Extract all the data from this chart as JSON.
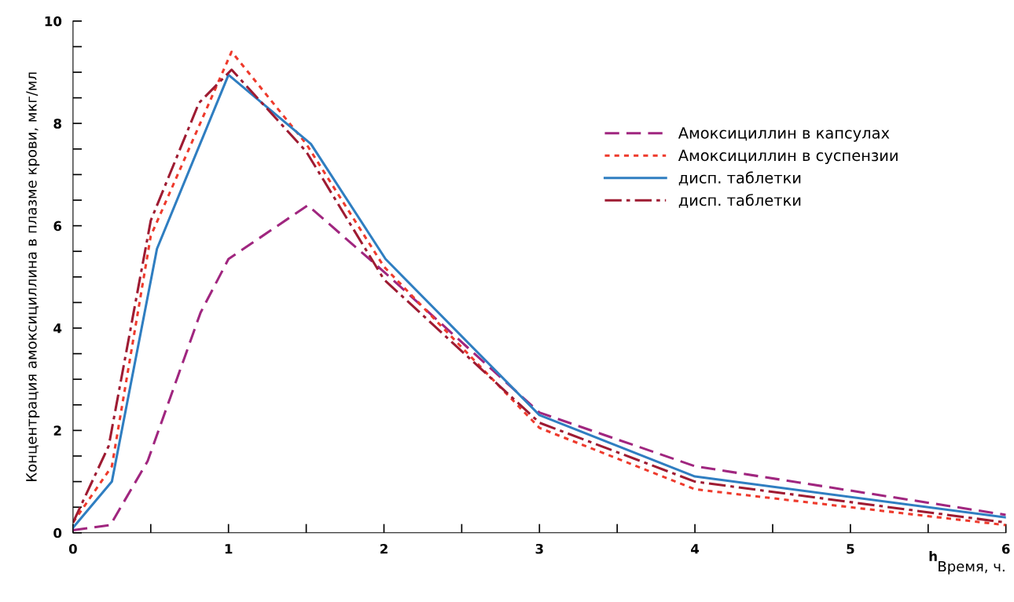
{
  "chart_data": {
    "type": "line",
    "ylabel": "Концентрация амоксициллина в плазме крови, мкг/мл",
    "xlabel": "Время, ч.",
    "annotations": [
      "h"
    ],
    "xlim": [
      0,
      6
    ],
    "ylim": [
      0,
      10
    ],
    "xticks": [
      0,
      {
        "value": 0.5,
        "label": null
      },
      1,
      {
        "value": 1.5,
        "label": null
      },
      2,
      {
        "value": 2.5,
        "label": null
      },
      3,
      {
        "value": 3.5,
        "label": null
      },
      4,
      {
        "value": 4.5,
        "label": null
      },
      5,
      {
        "value": 5.5,
        "label": null
      },
      6
    ],
    "yticks": [
      0,
      {
        "value": 0.5,
        "label": null
      },
      {
        "value": 1,
        "label": null
      },
      {
        "value": 1.5,
        "label": null
      },
      2,
      {
        "value": 2.5,
        "label": null
      },
      {
        "value": 3,
        "label": null
      },
      {
        "value": 3.5,
        "label": null
      },
      4,
      {
        "value": 4.5,
        "label": null
      },
      {
        "value": 5,
        "label": null
      },
      {
        "value": 5.5,
        "label": null
      },
      6,
      {
        "value": 6.5,
        "label": null
      },
      {
        "value": 7,
        "label": null
      },
      {
        "value": 7.5,
        "label": null
      },
      8,
      {
        "value": 8.5,
        "label": null
      },
      {
        "value": 9,
        "label": null
      },
      {
        "value": 9.5,
        "label": null
      },
      10
    ],
    "grid": false,
    "legend": "top right",
    "marker": "none",
    "series": [
      {
        "name": "Амоксициллин в капсулах",
        "color": "#a0267f",
        "line_style": "dashed",
        "x": [
          0,
          0.24,
          0.48,
          0.82,
          1,
          1.51,
          2,
          3,
          4,
          6
        ],
        "values": [
          0.05,
          0.15,
          1.4,
          4.3,
          5.35,
          6.4,
          5.1,
          2.35,
          1.3,
          0.35
        ]
      },
      {
        "name": "Амоксициллин в суспензии",
        "color": "#ee3a2c",
        "line_style": "dotted",
        "x": [
          0,
          0.25,
          0.5,
          1.02,
          1.5,
          2,
          3,
          4,
          6
        ],
        "values": [
          0.2,
          1.3,
          5.8,
          9.4,
          7.6,
          5.2,
          2.05,
          0.85,
          0.15
        ]
      },
      {
        "name": "дисп. таблетки",
        "color": "#2f7ec1",
        "line_style": "solid",
        "x": [
          0,
          0.25,
          0.54,
          1,
          1.53,
          2.01,
          3,
          4,
          6
        ],
        "values": [
          0.1,
          1.0,
          5.55,
          8.95,
          7.6,
          5.35,
          2.3,
          1.1,
          0.3
        ]
      },
      {
        "name": "дисп. таблетки",
        "color": "#9e1b32",
        "line_style": "dashdot",
        "x": [
          0,
          0.23,
          0.5,
          0.81,
          1.02,
          1.5,
          2,
          3,
          4,
          6
        ],
        "values": [
          0.2,
          1.7,
          6.1,
          8.4,
          9.05,
          7.45,
          4.95,
          2.15,
          1.0,
          0.2
        ]
      }
    ]
  }
}
